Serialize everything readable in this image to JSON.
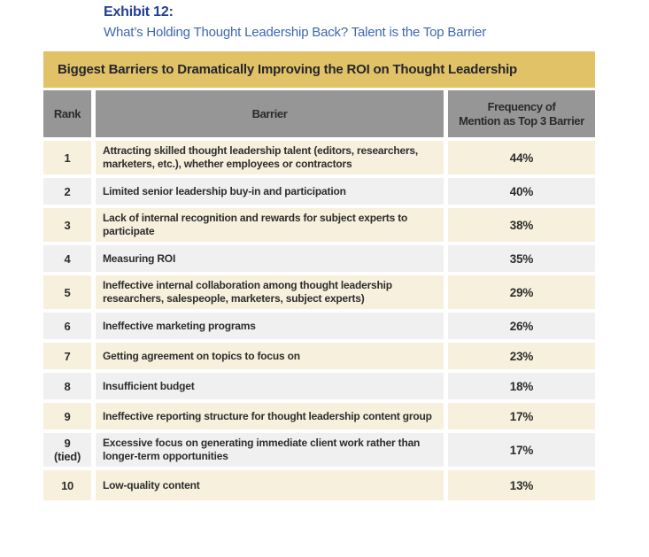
{
  "exhibit": {
    "label": "Exhibit 12:",
    "subtitle": "What’s Holding Thought Leadership Back? Talent is the Top Barrier"
  },
  "chart_data": {
    "type": "table",
    "title": "Biggest Barriers to Dramatically Improving the ROI on Thought Leadership",
    "columns": [
      "Rank",
      "Barrier",
      "Frequency of\nMention as Top 3 Barrier"
    ],
    "rows": [
      {
        "rank": "1",
        "barrier": "Attracting skilled thought leadership talent (editors, researchers, marketers, etc.), whether employees or contractors",
        "frequency": "44%"
      },
      {
        "rank": "2",
        "barrier": "Limited senior leadership buy-in and participation",
        "frequency": "40%"
      },
      {
        "rank": "3",
        "barrier": "Lack of internal recognition and rewards for subject experts to participate",
        "frequency": "38%"
      },
      {
        "rank": "4",
        "barrier": "Measuring ROI",
        "frequency": "35%"
      },
      {
        "rank": "5",
        "barrier": "Ineffective internal collaboration among thought leadership researchers, salespeople, marketers, subject experts)",
        "frequency": "29%"
      },
      {
        "rank": "6",
        "barrier": "Ineffective marketing programs",
        "frequency": "26%"
      },
      {
        "rank": "7",
        "barrier": "Getting agreement on topics to focus on",
        "frequency": "23%"
      },
      {
        "rank": "8",
        "barrier": "Insufficient budget",
        "frequency": "18%"
      },
      {
        "rank": "9",
        "barrier": "Ineffective reporting structure for thought leadership content group",
        "frequency": "17%"
      },
      {
        "rank": "9 (tied)",
        "barrier": "Excessive focus on generating immediate client work rather than longer-term opportunities",
        "frequency": "17%"
      },
      {
        "rank": "10",
        "barrier": "Low-quality content",
        "frequency": "13%"
      }
    ],
    "frequency_values_pct": [
      44,
      40,
      38,
      35,
      29,
      26,
      23,
      18,
      17,
      17,
      13
    ]
  },
  "colors": {
    "banner_bg": "#e2c266",
    "banner_text": "#25252d",
    "header_bg": "#969696",
    "header_text": "#2b2b2b",
    "row_cream": "#f7f0dd",
    "row_gray": "#f0f0f0",
    "body_text": "#2d2d2d",
    "title_blue": "#24418e",
    "subtitle_blue": "#3d68b2"
  }
}
